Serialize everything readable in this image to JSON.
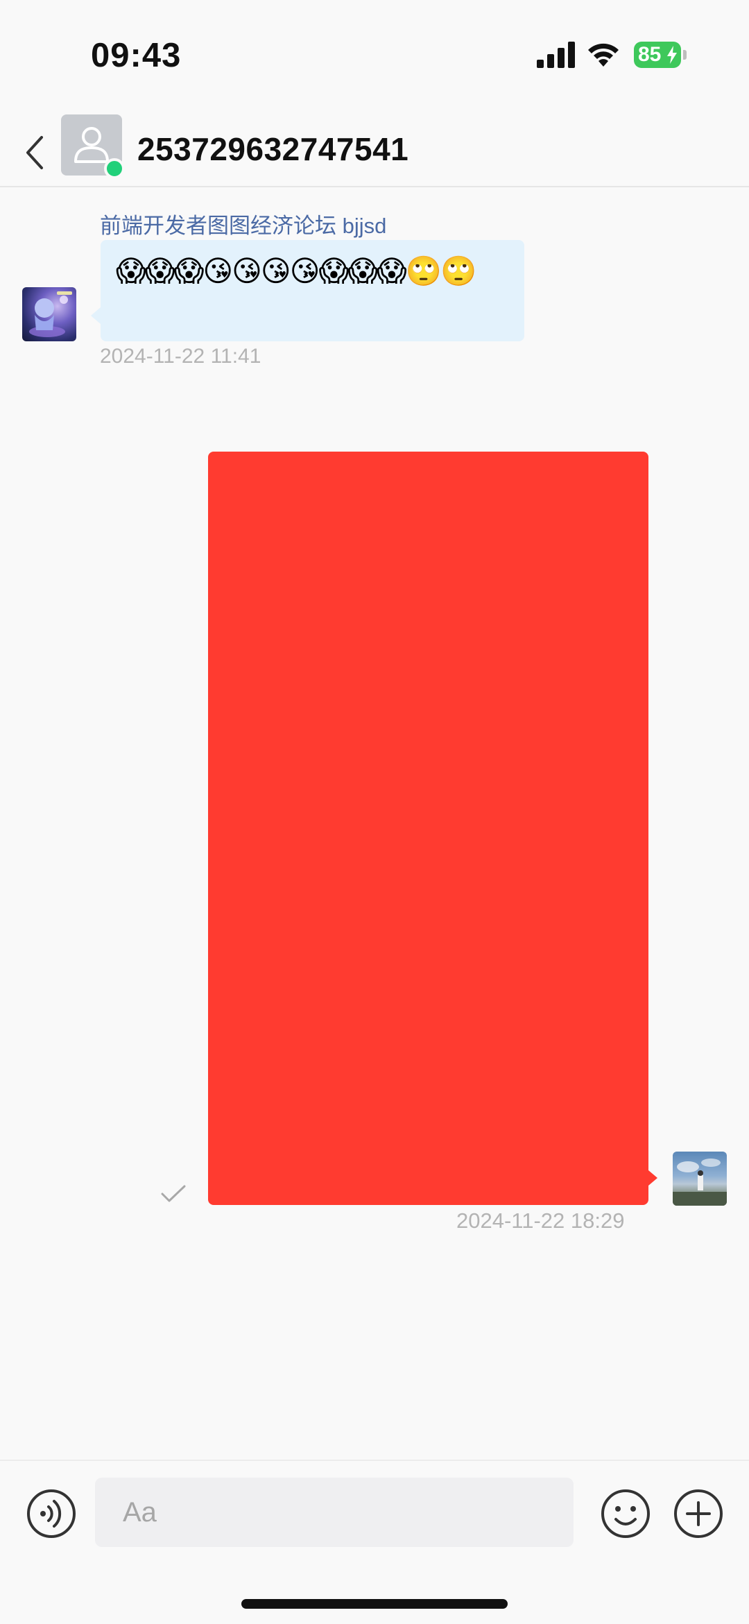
{
  "status_bar": {
    "time": "09:43",
    "battery": "85"
  },
  "header": {
    "title": "253729632747541"
  },
  "messages": {
    "incoming": {
      "sender_name": "前端开发者图图经济论坛 bjjsd",
      "text": "😱😱😱😘😘😘😘😱😱😱🙄🙄",
      "time": "2024-11-22 11:41"
    },
    "outgoing": {
      "color": "#ff3b30",
      "time": "2024-11-22 18:29",
      "status": "sent"
    }
  },
  "input": {
    "placeholder": "Aa"
  },
  "colors": {
    "online": "#21d07a",
    "incoming_bubble": "#e3f2fc",
    "sender_name": "#4b6aa5",
    "battery": "#3ec85b"
  }
}
